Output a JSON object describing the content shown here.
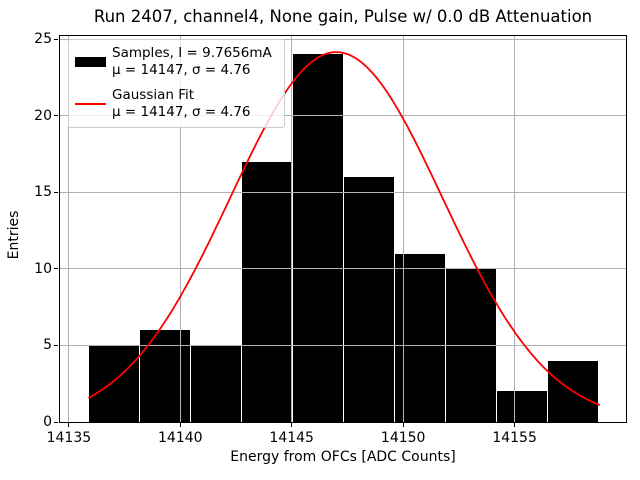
{
  "chart_data": {
    "type": "histogram",
    "title": "Run 2407, channel4, None gain, Pulse w/ 0.0 dB Attenuation",
    "xlabel": "Energy from OFCs [ADC Counts]",
    "ylabel": "Entries",
    "xlim": [
      14134.6,
      14160.0
    ],
    "ylim": [
      0,
      25.2
    ],
    "xticks": [
      14135,
      14140,
      14145,
      14150,
      14155
    ],
    "yticks": [
      0,
      5,
      10,
      15,
      20,
      25
    ],
    "grid": true,
    "grid_color": "#b0b0b0",
    "legend_position": "upper left",
    "series": [
      {
        "name": "Samples, I = 9.7656mA",
        "type": "histogram-bars",
        "color": "#000000",
        "bin_start": 14135.9,
        "bin_width": 2.29,
        "counts": [
          5,
          6,
          5,
          17,
          24,
          16,
          11,
          10,
          2,
          4
        ],
        "mu": 14147,
        "sigma": 4.76
      },
      {
        "name": "Gaussian Fit",
        "type": "line",
        "color": "#ff0000",
        "mu": 14147,
        "sigma": 4.76,
        "amplitude": 24.15,
        "x_range": [
          14135.9,
          14158.8
        ]
      }
    ],
    "legend": {
      "entries": [
        {
          "swatch": "black-patch-icon",
          "swatch_color": "#000000",
          "line1": "Samples, I = 9.7656mA",
          "line2": "μ = 14147, σ = 4.76"
        },
        {
          "swatch": "red-line-icon",
          "swatch_color": "#ff0000",
          "line1": "Gaussian Fit",
          "line2": "μ = 14147, σ = 4.76"
        }
      ]
    }
  }
}
